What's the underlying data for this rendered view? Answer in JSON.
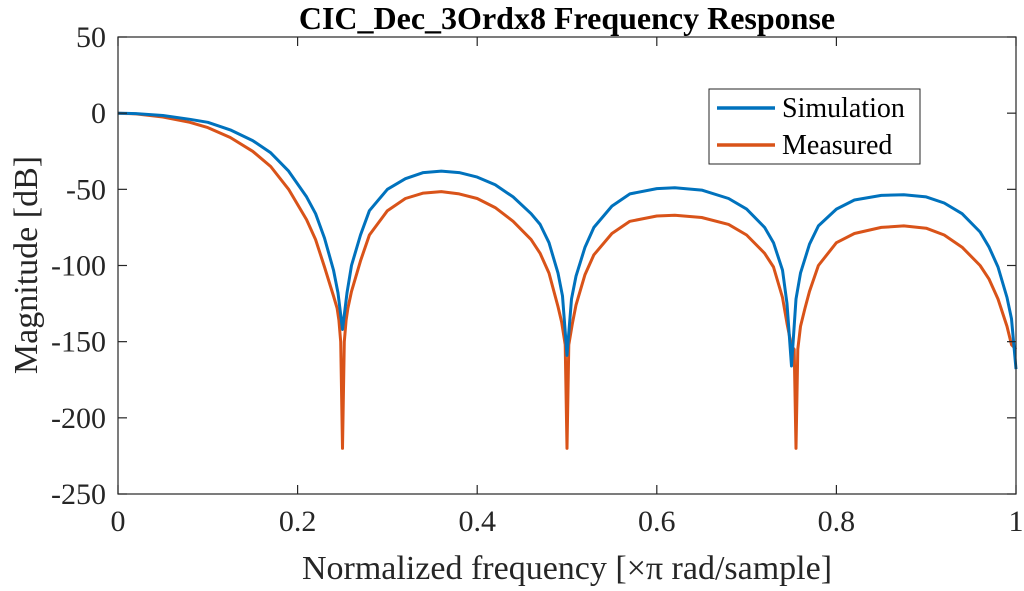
{
  "chart_data": {
    "type": "line",
    "title": "CIC_Dec_3Ordx8 Frequency Response",
    "xlabel": "Normalized frequency [×π rad/sample]",
    "ylabel": "Magnitude [dB]",
    "xlim": [
      0,
      1
    ],
    "ylim": [
      -250,
      50
    ],
    "x_ticks": [
      0,
      0.2,
      0.4,
      0.6,
      0.8,
      1
    ],
    "x_tick_labels": [
      "0",
      "0.2",
      "0.4",
      "0.6",
      "0.8",
      "1"
    ],
    "y_ticks": [
      50,
      0,
      -50,
      -100,
      -150,
      -200,
      -250
    ],
    "y_tick_labels": [
      "50",
      "0",
      "-50",
      "-100",
      "-150",
      "-200",
      "-250"
    ],
    "grid": false,
    "legend_position": "top-right",
    "series": [
      {
        "name": "Simulation",
        "color": "#0072BD",
        "points": [
          [
            0,
            0
          ],
          [
            0.02,
            -0.3
          ],
          [
            0.05,
            -1.5
          ],
          [
            0.08,
            -4
          ],
          [
            0.1,
            -6
          ],
          [
            0.125,
            -11
          ],
          [
            0.15,
            -18
          ],
          [
            0.17,
            -26
          ],
          [
            0.19,
            -38
          ],
          [
            0.21,
            -55
          ],
          [
            0.22,
            -66
          ],
          [
            0.23,
            -82
          ],
          [
            0.24,
            -103
          ],
          [
            0.245,
            -118
          ],
          [
            0.25,
            -142
          ],
          [
            0.255,
            -118
          ],
          [
            0.26,
            -100
          ],
          [
            0.27,
            -80
          ],
          [
            0.28,
            -64
          ],
          [
            0.3,
            -50
          ],
          [
            0.32,
            -43
          ],
          [
            0.34,
            -39
          ],
          [
            0.36,
            -38
          ],
          [
            0.38,
            -39
          ],
          [
            0.4,
            -42
          ],
          [
            0.42,
            -47
          ],
          [
            0.44,
            -55
          ],
          [
            0.46,
            -66
          ],
          [
            0.47,
            -73
          ],
          [
            0.48,
            -85
          ],
          [
            0.49,
            -105
          ],
          [
            0.495,
            -120
          ],
          [
            0.5,
            -159
          ],
          [
            0.505,
            -122
          ],
          [
            0.51,
            -107
          ],
          [
            0.52,
            -88
          ],
          [
            0.53,
            -75
          ],
          [
            0.55,
            -61
          ],
          [
            0.57,
            -53
          ],
          [
            0.6,
            -49.5
          ],
          [
            0.62,
            -49
          ],
          [
            0.65,
            -50.5
          ],
          [
            0.68,
            -56
          ],
          [
            0.7,
            -63
          ],
          [
            0.72,
            -75
          ],
          [
            0.73,
            -85
          ],
          [
            0.74,
            -103
          ],
          [
            0.745,
            -125
          ],
          [
            0.75,
            -166
          ],
          [
            0.755,
            -122
          ],
          [
            0.76,
            -105
          ],
          [
            0.77,
            -86
          ],
          [
            0.78,
            -74
          ],
          [
            0.8,
            -63
          ],
          [
            0.82,
            -57
          ],
          [
            0.85,
            -54
          ],
          [
            0.875,
            -53.5
          ],
          [
            0.9,
            -55
          ],
          [
            0.92,
            -59
          ],
          [
            0.94,
            -66
          ],
          [
            0.96,
            -78
          ],
          [
            0.97,
            -88
          ],
          [
            0.98,
            -101
          ],
          [
            0.99,
            -121
          ],
          [
            0.995,
            -135
          ],
          [
            1.0,
            -168
          ]
        ]
      },
      {
        "name": "Measured",
        "color": "#D95319",
        "points": [
          [
            0,
            0
          ],
          [
            0.02,
            -0.5
          ],
          [
            0.05,
            -2.5
          ],
          [
            0.08,
            -6
          ],
          [
            0.1,
            -9.5
          ],
          [
            0.125,
            -16
          ],
          [
            0.15,
            -25
          ],
          [
            0.17,
            -35
          ],
          [
            0.19,
            -50
          ],
          [
            0.21,
            -70
          ],
          [
            0.22,
            -83
          ],
          [
            0.23,
            -101
          ],
          [
            0.24,
            -120
          ],
          [
            0.244,
            -128
          ],
          [
            0.246,
            -136
          ],
          [
            0.248,
            -150
          ],
          [
            0.25,
            -220
          ],
          [
            0.252,
            -150
          ],
          [
            0.254,
            -136
          ],
          [
            0.256,
            -128
          ],
          [
            0.26,
            -117
          ],
          [
            0.27,
            -97
          ],
          [
            0.28,
            -80
          ],
          [
            0.3,
            -64
          ],
          [
            0.32,
            -56
          ],
          [
            0.34,
            -52.5
          ],
          [
            0.36,
            -51.5
          ],
          [
            0.38,
            -53
          ],
          [
            0.4,
            -56
          ],
          [
            0.42,
            -62
          ],
          [
            0.44,
            -71
          ],
          [
            0.46,
            -83
          ],
          [
            0.47,
            -92
          ],
          [
            0.48,
            -105
          ],
          [
            0.49,
            -127
          ],
          [
            0.494,
            -137
          ],
          [
            0.498,
            -152
          ],
          [
            0.5,
            -220
          ],
          [
            0.502,
            -152
          ],
          [
            0.506,
            -138
          ],
          [
            0.51,
            -126
          ],
          [
            0.52,
            -106
          ],
          [
            0.53,
            -93
          ],
          [
            0.55,
            -79
          ],
          [
            0.57,
            -71
          ],
          [
            0.6,
            -67.5
          ],
          [
            0.62,
            -67
          ],
          [
            0.65,
            -68.5
          ],
          [
            0.68,
            -73
          ],
          [
            0.7,
            -80
          ],
          [
            0.72,
            -92
          ],
          [
            0.73,
            -101
          ],
          [
            0.74,
            -121
          ],
          [
            0.745,
            -138
          ],
          [
            0.75,
            -153
          ],
          [
            0.753,
            -155
          ],
          [
            0.755,
            -220
          ],
          [
            0.757,
            -155
          ],
          [
            0.76,
            -140
          ],
          [
            0.765,
            -128
          ],
          [
            0.77,
            -117
          ],
          [
            0.78,
            -100
          ],
          [
            0.8,
            -85
          ],
          [
            0.82,
            -79
          ],
          [
            0.85,
            -75
          ],
          [
            0.875,
            -74
          ],
          [
            0.9,
            -75.5
          ],
          [
            0.92,
            -80
          ],
          [
            0.94,
            -88
          ],
          [
            0.96,
            -100
          ],
          [
            0.97,
            -109
          ],
          [
            0.98,
            -122
          ],
          [
            0.99,
            -140
          ],
          [
            0.995,
            -152
          ],
          [
            1.0,
            -155
          ]
        ]
      }
    ]
  }
}
